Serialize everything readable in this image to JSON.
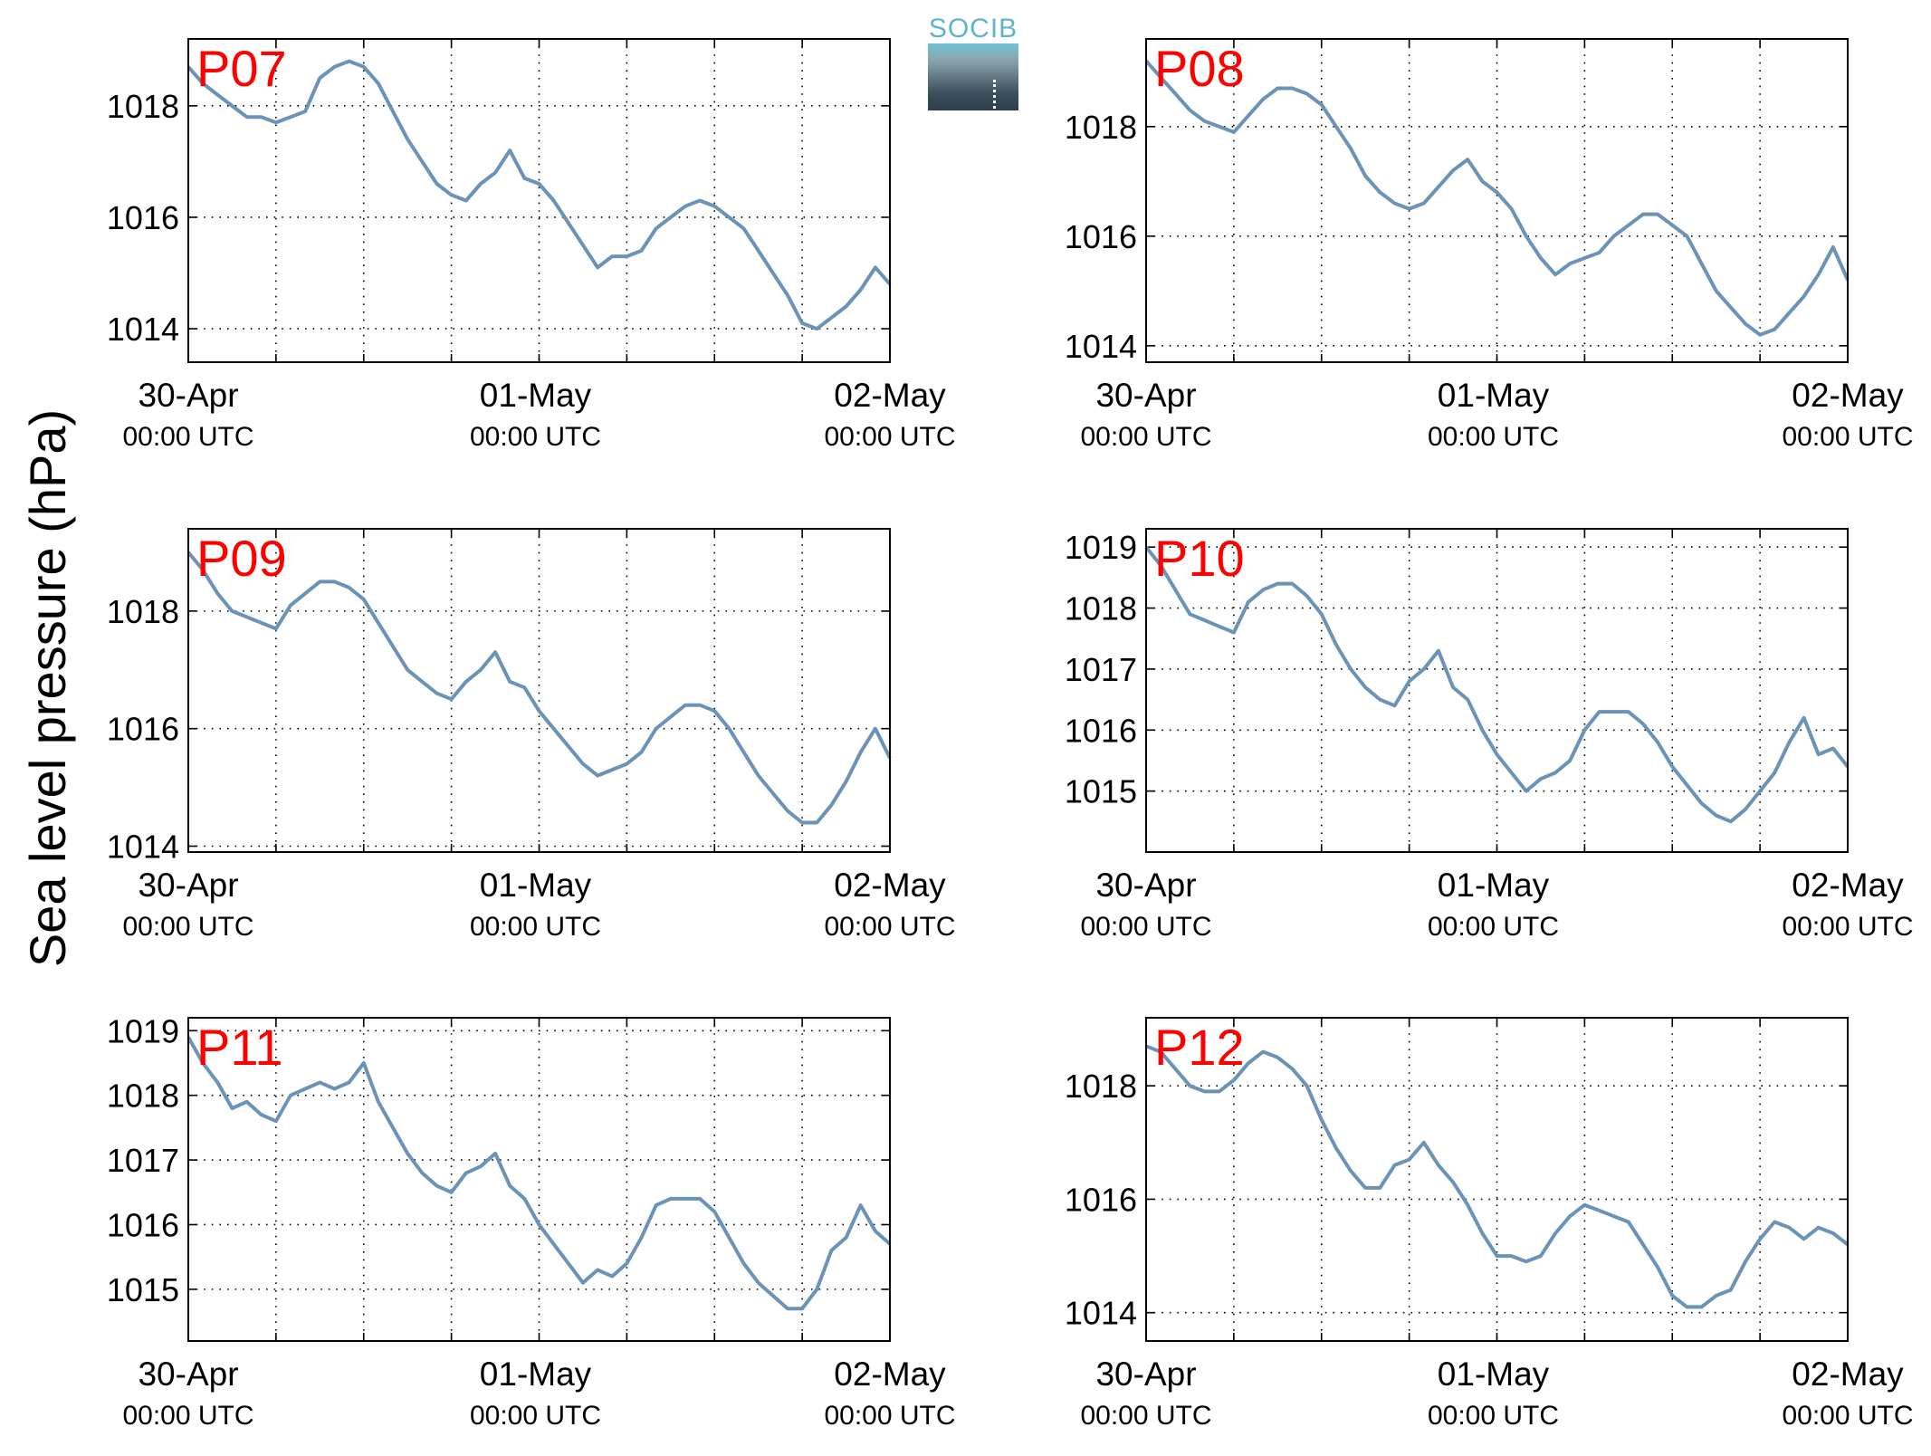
{
  "logo": {
    "text": "SOCIB"
  },
  "figure_ylabel": "Sea level pressure (hPa)",
  "chart_data": [
    {
      "type": "line",
      "station": "P07",
      "x_range": [
        "2015-04-30T00:00Z",
        "2015-05-02T00:00Z"
      ],
      "x_tick_labels": [
        {
          "date": "30-Apr",
          "time": "00:00 UTC"
        },
        {
          "date": "01-May",
          "time": "00:00 UTC"
        },
        {
          "date": "02-May",
          "time": "00:00 UTC"
        }
      ],
      "ylim": [
        1013.4,
        1019.2
      ],
      "y_ticks": [
        1014,
        1016,
        1018
      ],
      "grid": true,
      "series": [
        {
          "values_hours": [
            0,
            1,
            2,
            3,
            4,
            5,
            6,
            7,
            8,
            9,
            10,
            11,
            12,
            13,
            14,
            15,
            16,
            17,
            18,
            19,
            20,
            21,
            22,
            23,
            24,
            25,
            26,
            27,
            28,
            29,
            30,
            31,
            32,
            33,
            34,
            35,
            36,
            37,
            38,
            39,
            40,
            41,
            42,
            43,
            44,
            45,
            46,
            47,
            48
          ],
          "values": [
            1018.7,
            1018.4,
            1018.2,
            1018.0,
            1017.8,
            1017.8,
            1017.7,
            1017.8,
            1017.9,
            1018.5,
            1018.7,
            1018.8,
            1018.7,
            1018.4,
            1017.9,
            1017.4,
            1017.0,
            1016.6,
            1016.4,
            1016.3,
            1016.6,
            1016.8,
            1017.2,
            1016.7,
            1016.6,
            1016.3,
            1015.9,
            1015.5,
            1015.1,
            1015.3,
            1015.3,
            1015.4,
            1015.8,
            1016.0,
            1016.2,
            1016.3,
            1016.2,
            1016.0,
            1015.8,
            1015.4,
            1015.0,
            1014.6,
            1014.1,
            1014.0,
            1014.2,
            1014.4,
            1014.7,
            1015.1,
            1014.8
          ]
        }
      ]
    },
    {
      "type": "line",
      "station": "P08",
      "x_range": [
        "2015-04-30T00:00Z",
        "2015-05-02T00:00Z"
      ],
      "x_tick_labels": [
        {
          "date": "30-Apr",
          "time": "00:00 UTC"
        },
        {
          "date": "01-May",
          "time": "00:00 UTC"
        },
        {
          "date": "02-May",
          "time": "00:00 UTC"
        }
      ],
      "ylim": [
        1013.7,
        1019.6
      ],
      "y_ticks": [
        1014,
        1016,
        1018
      ],
      "grid": true,
      "series": [
        {
          "values_hours": [
            0,
            1,
            2,
            3,
            4,
            5,
            6,
            7,
            8,
            9,
            10,
            11,
            12,
            13,
            14,
            15,
            16,
            17,
            18,
            19,
            20,
            21,
            22,
            23,
            24,
            25,
            26,
            27,
            28,
            29,
            30,
            31,
            32,
            33,
            34,
            35,
            36,
            37,
            38,
            39,
            40,
            41,
            42,
            43,
            44,
            45,
            46,
            47,
            48
          ],
          "values": [
            1019.2,
            1018.9,
            1018.6,
            1018.3,
            1018.1,
            1018.0,
            1017.9,
            1018.2,
            1018.5,
            1018.7,
            1018.7,
            1018.6,
            1018.4,
            1018.0,
            1017.6,
            1017.1,
            1016.8,
            1016.6,
            1016.5,
            1016.6,
            1016.9,
            1017.2,
            1017.4,
            1017.0,
            1016.8,
            1016.5,
            1016.0,
            1015.6,
            1015.3,
            1015.5,
            1015.6,
            1015.7,
            1016.0,
            1016.2,
            1016.4,
            1016.4,
            1016.2,
            1016.0,
            1015.5,
            1015.0,
            1014.7,
            1014.4,
            1014.2,
            1014.3,
            1014.6,
            1014.9,
            1015.3,
            1015.8,
            1015.2
          ]
        }
      ]
    },
    {
      "type": "line",
      "station": "P09",
      "x_range": [
        "2015-04-30T00:00Z",
        "2015-05-02T00:00Z"
      ],
      "x_tick_labels": [
        {
          "date": "30-Apr",
          "time": "00:00 UTC"
        },
        {
          "date": "01-May",
          "time": "00:00 UTC"
        },
        {
          "date": "02-May",
          "time": "00:00 UTC"
        }
      ],
      "ylim": [
        1013.9,
        1019.4
      ],
      "y_ticks": [
        1014,
        1016,
        1018
      ],
      "grid": true,
      "series": [
        {
          "values_hours": [
            0,
            1,
            2,
            3,
            4,
            5,
            6,
            7,
            8,
            9,
            10,
            11,
            12,
            13,
            14,
            15,
            16,
            17,
            18,
            19,
            20,
            21,
            22,
            23,
            24,
            25,
            26,
            27,
            28,
            29,
            30,
            31,
            32,
            33,
            34,
            35,
            36,
            37,
            38,
            39,
            40,
            41,
            42,
            43,
            44,
            45,
            46,
            47,
            48
          ],
          "values": [
            1019.0,
            1018.7,
            1018.3,
            1018.0,
            1017.9,
            1017.8,
            1017.7,
            1018.1,
            1018.3,
            1018.5,
            1018.5,
            1018.4,
            1018.2,
            1017.8,
            1017.4,
            1017.0,
            1016.8,
            1016.6,
            1016.5,
            1016.8,
            1017.0,
            1017.3,
            1016.8,
            1016.7,
            1016.3,
            1016.0,
            1015.7,
            1015.4,
            1015.2,
            1015.3,
            1015.4,
            1015.6,
            1016.0,
            1016.2,
            1016.4,
            1016.4,
            1016.3,
            1016.0,
            1015.6,
            1015.2,
            1014.9,
            1014.6,
            1014.4,
            1014.4,
            1014.7,
            1015.1,
            1015.6,
            1016.0,
            1015.5
          ]
        }
      ]
    },
    {
      "type": "line",
      "station": "P10",
      "x_range": [
        "2015-04-30T00:00Z",
        "2015-05-02T00:00Z"
      ],
      "x_tick_labels": [
        {
          "date": "30-Apr",
          "time": "00:00 UTC"
        },
        {
          "date": "01-May",
          "time": "00:00 UTC"
        },
        {
          "date": "02-May",
          "time": "00:00 UTC"
        }
      ],
      "ylim": [
        1014.0,
        1019.3
      ],
      "y_ticks": [
        1015,
        1016,
        1017,
        1018,
        1019
      ],
      "grid": true,
      "series": [
        {
          "values_hours": [
            0,
            1,
            2,
            3,
            4,
            5,
            6,
            7,
            8,
            9,
            10,
            11,
            12,
            13,
            14,
            15,
            16,
            17,
            18,
            19,
            20,
            21,
            22,
            23,
            24,
            25,
            26,
            27,
            28,
            29,
            30,
            31,
            32,
            33,
            34,
            35,
            36,
            37,
            38,
            39,
            40,
            41,
            42,
            43,
            44,
            45,
            46,
            47,
            48
          ],
          "values": [
            1019.0,
            1018.7,
            1018.3,
            1017.9,
            1017.8,
            1017.7,
            1017.6,
            1018.1,
            1018.3,
            1018.4,
            1018.4,
            1018.2,
            1017.9,
            1017.4,
            1017.0,
            1016.7,
            1016.5,
            1016.4,
            1016.8,
            1017.0,
            1017.3,
            1016.7,
            1016.5,
            1016.0,
            1015.6,
            1015.3,
            1015.0,
            1015.2,
            1015.3,
            1015.5,
            1016.0,
            1016.3,
            1016.3,
            1016.3,
            1016.1,
            1015.8,
            1015.4,
            1015.1,
            1014.8,
            1014.6,
            1014.5,
            1014.7,
            1015.0,
            1015.3,
            1015.8,
            1016.2,
            1015.6,
            1015.7,
            1015.4
          ]
        }
      ]
    },
    {
      "type": "line",
      "station": "P11",
      "x_range": [
        "2015-04-30T00:00Z",
        "2015-05-02T00:00Z"
      ],
      "x_tick_labels": [
        {
          "date": "30-Apr",
          "time": "00:00 UTC"
        },
        {
          "date": "01-May",
          "time": "00:00 UTC"
        },
        {
          "date": "02-May",
          "time": "00:00 UTC"
        }
      ],
      "ylim": [
        1014.2,
        1019.2
      ],
      "y_ticks": [
        1015,
        1016,
        1017,
        1018,
        1019
      ],
      "grid": true,
      "series": [
        {
          "values_hours": [
            0,
            1,
            2,
            3,
            4,
            5,
            6,
            7,
            8,
            9,
            10,
            11,
            12,
            13,
            14,
            15,
            16,
            17,
            18,
            19,
            20,
            21,
            22,
            23,
            24,
            25,
            26,
            27,
            28,
            29,
            30,
            31,
            32,
            33,
            34,
            35,
            36,
            37,
            38,
            39,
            40,
            41,
            42,
            43,
            44,
            45,
            46,
            47,
            48
          ],
          "values": [
            1018.9,
            1018.5,
            1018.2,
            1017.8,
            1017.9,
            1017.7,
            1017.6,
            1018.0,
            1018.1,
            1018.2,
            1018.1,
            1018.2,
            1018.5,
            1017.9,
            1017.5,
            1017.1,
            1016.8,
            1016.6,
            1016.5,
            1016.8,
            1016.9,
            1017.1,
            1016.6,
            1016.4,
            1016.0,
            1015.7,
            1015.4,
            1015.1,
            1015.3,
            1015.2,
            1015.4,
            1015.8,
            1016.3,
            1016.4,
            1016.4,
            1016.4,
            1016.2,
            1015.8,
            1015.4,
            1015.1,
            1014.9,
            1014.7,
            1014.7,
            1015.0,
            1015.6,
            1015.8,
            1016.3,
            1015.9,
            1015.7
          ]
        }
      ]
    },
    {
      "type": "line",
      "station": "P12",
      "x_range": [
        "2015-04-30T00:00Z",
        "2015-05-02T00:00Z"
      ],
      "x_tick_labels": [
        {
          "date": "30-Apr",
          "time": "00:00 UTC"
        },
        {
          "date": "01-May",
          "time": "00:00 UTC"
        },
        {
          "date": "02-May",
          "time": "00:00 UTC"
        }
      ],
      "ylim": [
        1013.5,
        1019.2
      ],
      "y_ticks": [
        1014,
        1016,
        1018
      ],
      "grid": true,
      "series": [
        {
          "values_hours": [
            0,
            1,
            2,
            3,
            4,
            5,
            6,
            7,
            8,
            9,
            10,
            11,
            12,
            13,
            14,
            15,
            16,
            17,
            18,
            19,
            20,
            21,
            22,
            23,
            24,
            25,
            26,
            27,
            28,
            29,
            30,
            31,
            32,
            33,
            34,
            35,
            36,
            37,
            38,
            39,
            40,
            41,
            42,
            43,
            44,
            45,
            46,
            47,
            48
          ],
          "values": [
            1018.7,
            1018.6,
            1018.3,
            1018.0,
            1017.9,
            1017.9,
            1018.1,
            1018.4,
            1018.6,
            1018.5,
            1018.3,
            1018.0,
            1017.4,
            1016.9,
            1016.5,
            1016.2,
            1016.2,
            1016.6,
            1016.7,
            1017.0,
            1016.6,
            1016.3,
            1015.9,
            1015.4,
            1015.0,
            1015.0,
            1014.9,
            1015.0,
            1015.4,
            1015.7,
            1015.9,
            1015.8,
            1015.7,
            1015.6,
            1015.2,
            1014.8,
            1014.3,
            1014.1,
            1014.1,
            1014.3,
            1014.4,
            1014.9,
            1015.3,
            1015.6,
            1015.5,
            1015.3,
            1015.5,
            1015.4,
            1015.2
          ]
        }
      ]
    }
  ],
  "colors": {
    "line": "#6b93b7",
    "station_label": "#ff0000",
    "axis": "#000000",
    "grid": "#000000"
  }
}
